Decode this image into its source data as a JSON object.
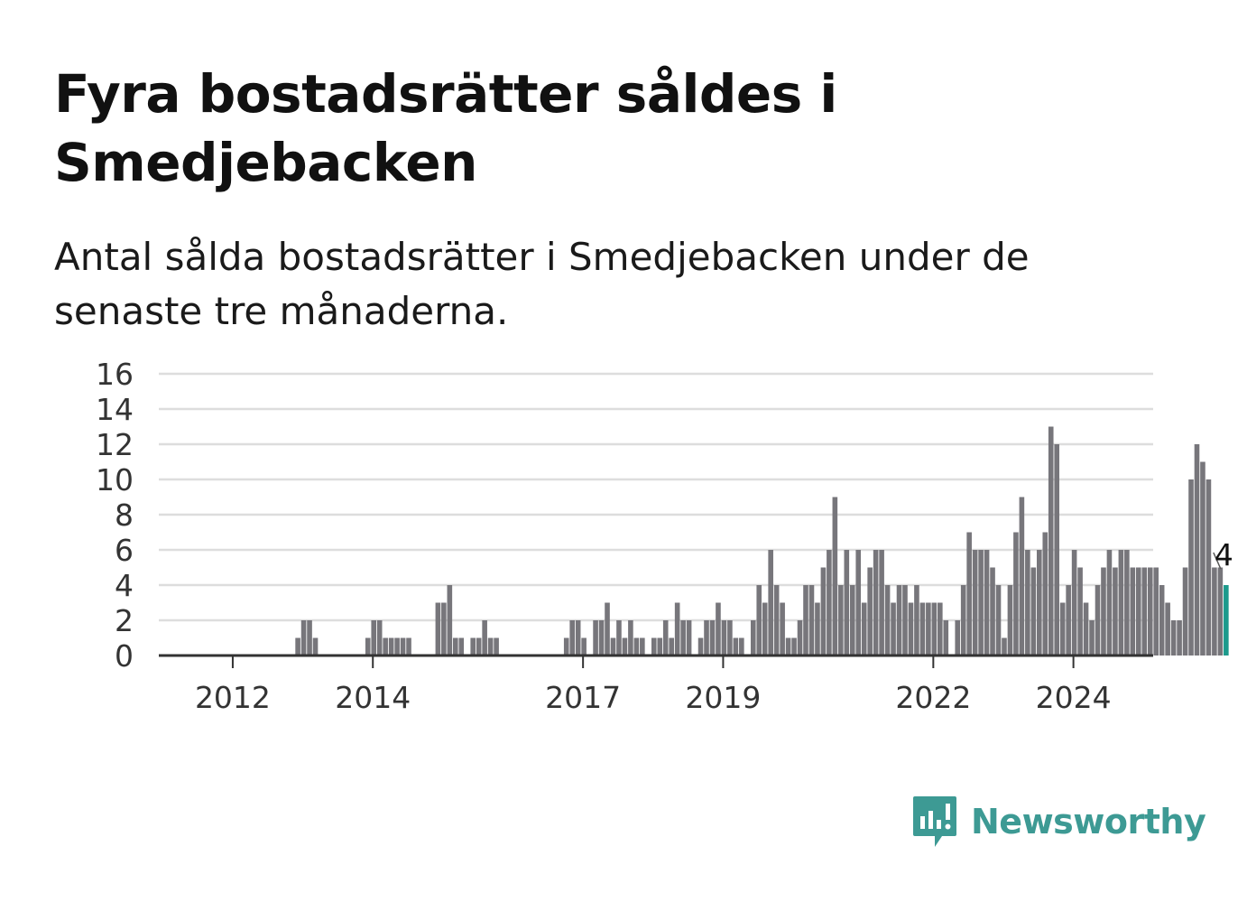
{
  "title": "Fyra bostadsrätter såldes i Smedjebacken",
  "subtitle": "Antal sålda bostadsrätter i Smedjebacken under de senaste tre månaderna.",
  "brand": {
    "name": "Newsworthy",
    "icon": "newsworthy-logo-icon",
    "color": "#3d9a94"
  },
  "chart_data": {
    "type": "bar",
    "start_date": "2011-01",
    "interval": "month",
    "values": [
      0,
      0,
      0,
      0,
      0,
      0,
      0,
      0,
      0,
      0,
      0,
      0,
      0,
      0,
      0,
      0,
      0,
      0,
      0,
      0,
      0,
      0,
      0,
      1,
      2,
      2,
      1,
      0,
      0,
      0,
      0,
      0,
      0,
      0,
      0,
      1,
      2,
      2,
      1,
      1,
      1,
      1,
      1,
      0,
      0,
      0,
      0,
      3,
      3,
      4,
      1,
      1,
      0,
      1,
      1,
      2,
      1,
      1,
      0,
      0,
      0,
      0,
      0,
      0,
      0,
      0,
      0,
      0,
      0,
      1,
      2,
      2,
      1,
      0,
      2,
      2,
      3,
      1,
      2,
      1,
      2,
      1,
      1,
      0,
      1,
      1,
      2,
      1,
      3,
      2,
      2,
      0,
      1,
      2,
      2,
      3,
      2,
      2,
      1,
      1,
      0,
      2,
      4,
      3,
      6,
      4,
      3,
      1,
      1,
      2,
      4,
      4,
      3,
      5,
      6,
      9,
      4,
      6,
      4,
      6,
      3,
      5,
      6,
      6,
      4,
      3,
      4,
      4,
      3,
      4,
      3,
      3,
      3,
      3,
      2,
      0,
      2,
      4,
      7,
      6,
      6,
      6,
      5,
      4,
      1,
      4,
      7,
      9,
      6,
      5,
      6,
      7,
      13,
      12,
      3,
      4,
      6,
      5,
      3,
      2,
      4,
      5,
      6,
      5,
      6,
      6,
      5,
      5,
      5,
      5,
      5,
      4,
      3,
      2,
      2,
      5,
      10,
      12,
      11,
      10,
      5,
      5,
      4
    ],
    "x_tick_labels": [
      "2012",
      "2014",
      "2017",
      "2019",
      "2022",
      "2024"
    ],
    "y_tick_labels": [
      "0",
      "2",
      "4",
      "6",
      "8",
      "10",
      "12",
      "14",
      "16"
    ],
    "ylim": [
      0,
      16
    ],
    "grid": true,
    "highlight_last": true,
    "last_value_label": "4",
    "colors": {
      "bar": "#77767b",
      "highlight": "#1d9a8c",
      "grid": "#dddddd",
      "axis": "#333333"
    }
  }
}
